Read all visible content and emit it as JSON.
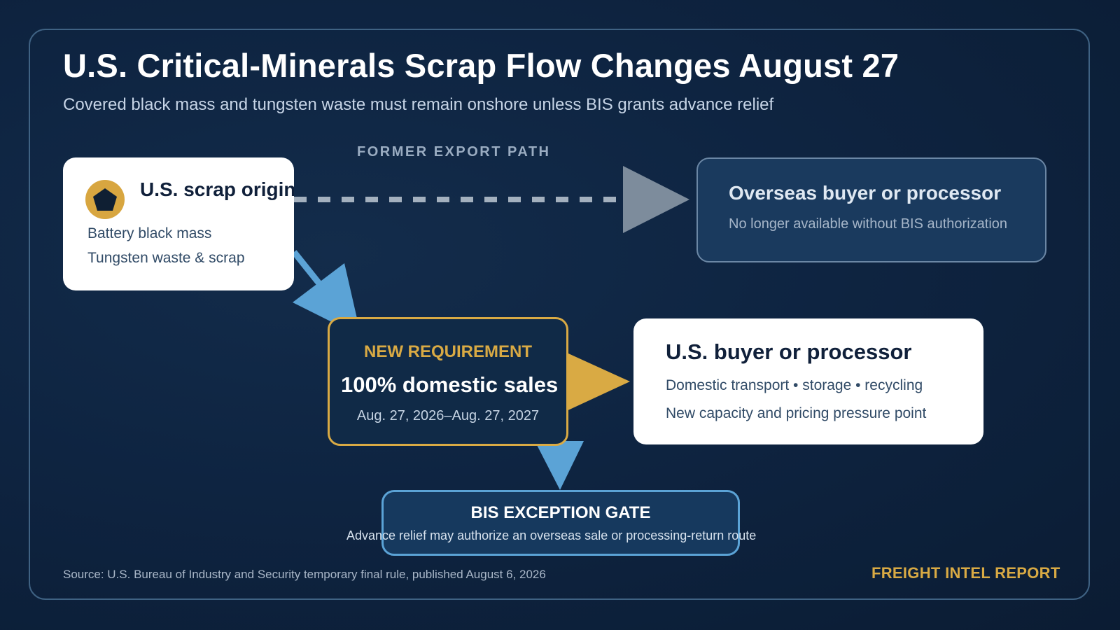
{
  "header": {
    "title": "U.S. Critical-Minerals Scrap Flow Changes August 27",
    "subtitle": "Covered black mass and tungsten waste must remain onshore unless BIS grants advance relief"
  },
  "former_path": {
    "label": "FORMER EXPORT PATH"
  },
  "origin": {
    "title": "U.S. scrap origin",
    "items": [
      "Battery black mass",
      "Tungsten waste & scrap"
    ]
  },
  "overseas": {
    "title": "Overseas buyer or processor",
    "note": "No longer available without BIS authorization"
  },
  "requirement": {
    "eyebrow": "NEW REQUIREMENT",
    "main": "100% domestic sales",
    "dates": "Aug. 27, 2026–Aug. 27, 2027"
  },
  "domestic": {
    "title": "U.S. buyer or processor",
    "line1": "Domestic transport • storage • recycling",
    "line2": "New capacity and pricing pressure point"
  },
  "gate": {
    "title": "BIS EXCEPTION GATE",
    "note": "Advance relief may authorize an overseas sale or processing-return route"
  },
  "footer": {
    "source": "Source: U.S. Bureau of Industry and Security temporary final rule, published August 6, 2026",
    "brand": "FREIGHT INTEL REPORT"
  },
  "colors": {
    "accent_gold": "#d9aa44",
    "accent_blue": "#5ba3d6",
    "muted_arrow": "#7d8c9c",
    "background": "#0c1e36"
  },
  "icons": {
    "origin_badge": "pentagon-icon"
  }
}
